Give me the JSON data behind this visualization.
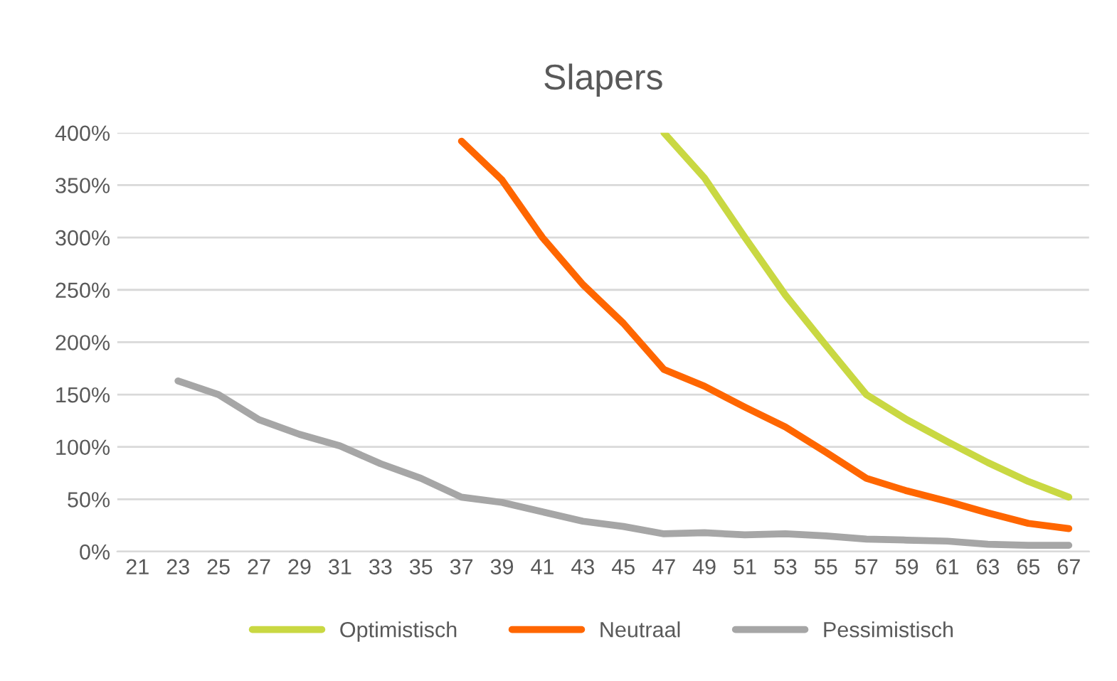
{
  "chart_data": {
    "type": "line",
    "title": "Slapers",
    "categories": [
      "21",
      "23",
      "25",
      "27",
      "29",
      "31",
      "33",
      "35",
      "37",
      "39",
      "41",
      "43",
      "45",
      "47",
      "49",
      "51",
      "53",
      "55",
      "57",
      "59",
      "61",
      "63",
      "65",
      "67"
    ],
    "series": [
      {
        "name": "Optimistisch",
        "color": "#c9d842",
        "values": [
          null,
          null,
          null,
          null,
          null,
          null,
          null,
          null,
          null,
          null,
          null,
          null,
          null,
          4.0,
          3.57,
          3.0,
          2.45,
          1.97,
          1.5,
          1.26,
          1.05,
          0.85,
          0.67,
          0.52
        ]
      },
      {
        "name": "Neutraal",
        "color": "#ff6600",
        "values": [
          null,
          null,
          null,
          null,
          null,
          null,
          null,
          null,
          3.92,
          3.55,
          3.0,
          2.55,
          2.18,
          1.74,
          1.58,
          1.38,
          1.19,
          0.95,
          0.7,
          0.58,
          0.48,
          0.37,
          0.27,
          0.22
        ]
      },
      {
        "name": "Pessimistisch",
        "color": "#a6a6a6",
        "values": [
          null,
          1.63,
          1.5,
          1.26,
          1.12,
          1.01,
          0.84,
          0.7,
          0.52,
          0.47,
          0.38,
          0.29,
          0.24,
          0.17,
          0.18,
          0.16,
          0.17,
          0.15,
          0.12,
          0.11,
          0.1,
          0.07,
          0.06,
          0.06
        ]
      }
    ],
    "ylim": [
      0,
      4
    ],
    "yticks": [
      {
        "value": 0,
        "label": "0%"
      },
      {
        "value": 0.5,
        "label": "50%"
      },
      {
        "value": 1,
        "label": "100%"
      },
      {
        "value": 1.5,
        "label": "150%"
      },
      {
        "value": 2,
        "label": "200%"
      },
      {
        "value": 2.5,
        "label": "250%"
      },
      {
        "value": 3,
        "label": "300%"
      },
      {
        "value": 3.5,
        "label": "350%"
      },
      {
        "value": 4,
        "label": "400%"
      }
    ],
    "grid": "y",
    "legend": "bottom",
    "marker": "none",
    "line_style": "solid"
  }
}
